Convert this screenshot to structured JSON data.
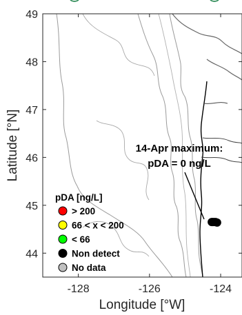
{
  "chart_data": {
    "type": "scatter",
    "title": "",
    "xlabel": "Longitude [°W]",
    "ylabel": "Latitude [°N]",
    "xlim": [
      -129,
      -123.4
    ],
    "ylim": [
      43.5,
      49.0
    ],
    "xticks": [
      -128,
      -126,
      -124
    ],
    "xtick_labels": [
      "-128",
      "-126",
      "-124"
    ],
    "yticks": [
      44,
      45,
      46,
      47,
      48,
      49
    ],
    "ytick_labels": [
      "44",
      "45",
      "46",
      "47",
      "48",
      "49"
    ],
    "grid": false,
    "background_map": "coastline with bathymetry contours",
    "annotation": {
      "lines": [
        "14-Apr maximum:",
        "pDA = 0 ng/L"
      ],
      "points_to": {
        "lon": -124.2,
        "lat": 44.7
      }
    },
    "legend": {
      "title": "pDA [ng/L]",
      "placement": "lower-left",
      "entries": [
        {
          "label": "> 200",
          "color": "#ff0000"
        },
        {
          "label": "66 < x < 200",
          "color": "#ffff00"
        },
        {
          "label": "< 66",
          "color": "#00ff00"
        },
        {
          "label": "Non detect",
          "color": "#000000"
        },
        {
          "label": "No data",
          "color": "#c0c0c0"
        }
      ]
    },
    "series": [
      {
        "category": "Non detect",
        "color": "#000000",
        "points": [
          {
            "lon": -124.25,
            "lat": 44.65
          },
          {
            "lon": -124.22,
            "lat": 44.65
          },
          {
            "lon": -124.18,
            "lat": 44.65
          },
          {
            "lon": -124.14,
            "lat": 44.65
          },
          {
            "lon": -124.1,
            "lat": 44.64
          }
        ]
      }
    ]
  }
}
